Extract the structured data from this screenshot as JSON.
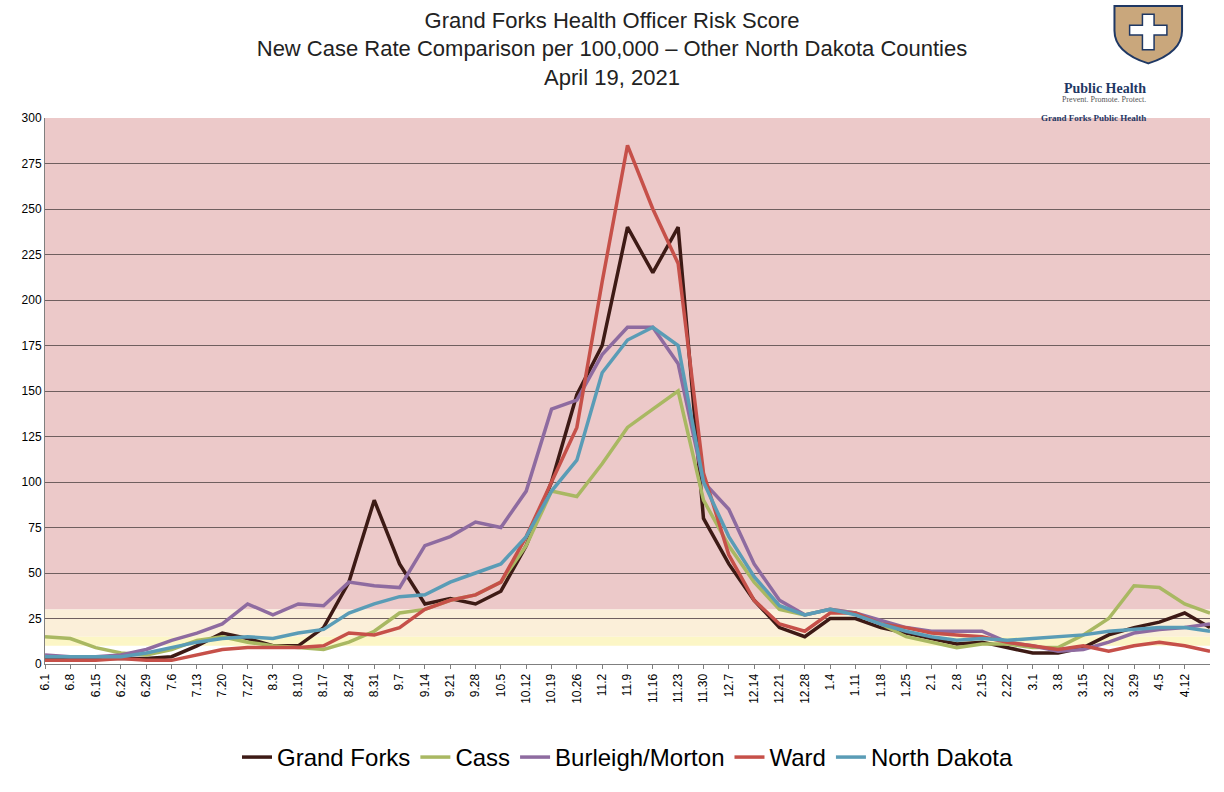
{
  "chart_data": {
    "type": "line",
    "title": "Grand Forks Health Officer Risk Score",
    "subtitle": [
      "New Case Rate Comparison per 100,000 – Other North Dakota Counties",
      "April 19, 2021"
    ],
    "logo": {
      "name": "Public Health",
      "tagline": "Prevent. Promote. Protect.",
      "org": "Grand Forks Public Health"
    },
    "categories": [
      "6.1",
      "6.8",
      "6.15",
      "6.22",
      "6.29",
      "7.6",
      "7.13",
      "7.20",
      "7.27",
      "8.3",
      "8.10",
      "8.17",
      "8.24",
      "8.31",
      "9.7",
      "9.14",
      "9.21",
      "9.28",
      "10.5",
      "10.12",
      "10.19",
      "10.26",
      "11.2",
      "11.9",
      "11.16",
      "11.23",
      "11.30",
      "12.7",
      "12.14",
      "12.21",
      "12.28",
      "1.4",
      "1.11",
      "1.18",
      "1.25",
      "2.1",
      "2.8",
      "2.15",
      "2.22",
      "3.1",
      "3.8",
      "3.15",
      "3.22",
      "3.29",
      "4.5",
      "4.12",
      null
    ],
    "series": [
      {
        "name": "Grand Forks",
        "color": "#3d1a15",
        "values": [
          3,
          3,
          3,
          3,
          3,
          4,
          10,
          17,
          14,
          10,
          10,
          20,
          45,
          90,
          55,
          33,
          36,
          33,
          40,
          65,
          100,
          148,
          175,
          240,
          215,
          240,
          80,
          55,
          35,
          20,
          15,
          25,
          25,
          20,
          17,
          14,
          11,
          12,
          9,
          6,
          6,
          9,
          16,
          20,
          23,
          28,
          20
        ]
      },
      {
        "name": "Cass",
        "color": "#a9b862",
        "values": [
          15,
          14,
          9,
          6,
          5,
          8,
          13,
          15,
          12,
          10,
          9,
          8,
          12,
          18,
          28,
          30,
          35,
          38,
          45,
          65,
          95,
          92,
          110,
          130,
          140,
          150,
          90,
          65,
          45,
          30,
          27,
          30,
          28,
          22,
          15,
          12,
          9,
          11,
          11,
          9,
          9,
          16,
          25,
          43,
          42,
          33,
          28
        ]
      },
      {
        "name": "Burleigh/Morton",
        "color": "#8e6ba0",
        "values": [
          5,
          4,
          4,
          5,
          8,
          13,
          17,
          22,
          33,
          27,
          33,
          32,
          45,
          43,
          42,
          65,
          70,
          78,
          75,
          95,
          140,
          145,
          170,
          185,
          185,
          165,
          100,
          85,
          55,
          35,
          27,
          30,
          28,
          24,
          20,
          18,
          18,
          18,
          12,
          10,
          7,
          8,
          12,
          17,
          19,
          20,
          22
        ]
      },
      {
        "name": "Ward",
        "color": "#c65049",
        "values": [
          2,
          2,
          2,
          3,
          2,
          2,
          5,
          8,
          9,
          9,
          9,
          10,
          17,
          16,
          20,
          30,
          35,
          38,
          45,
          70,
          100,
          130,
          210,
          285,
          250,
          220,
          105,
          60,
          35,
          22,
          18,
          28,
          28,
          22,
          20,
          17,
          16,
          15,
          12,
          10,
          8,
          10,
          7,
          10,
          12,
          10,
          7
        ]
      },
      {
        "name": "North Dakota",
        "color": "#5a9cb6",
        "values": [
          4,
          4,
          4,
          4,
          6,
          9,
          12,
          14,
          15,
          14,
          17,
          19,
          28,
          33,
          37,
          38,
          45,
          50,
          55,
          70,
          95,
          112,
          160,
          178,
          185,
          175,
          100,
          70,
          48,
          32,
          27,
          30,
          27,
          22,
          18,
          15,
          13,
          14,
          13,
          14,
          15,
          16,
          18,
          19,
          20,
          20,
          18
        ]
      }
    ],
    "bands": [
      {
        "from": 30,
        "to": 300,
        "color": "#ecc9c9"
      },
      {
        "from": 15,
        "to": 30,
        "color": "#fbefd9"
      },
      {
        "from": 10,
        "to": 15,
        "color": "#fcf6c6"
      }
    ],
    "ylim": [
      0,
      300
    ],
    "yticks": [
      0,
      25,
      50,
      75,
      100,
      125,
      150,
      175,
      200,
      225,
      250,
      275,
      300
    ],
    "grid": true,
    "legend": "bottom"
  }
}
